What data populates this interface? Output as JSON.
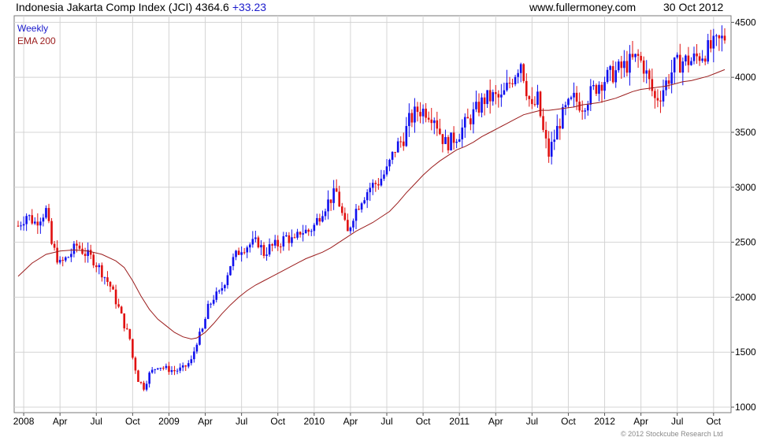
{
  "header": {
    "title": "Indonesia Jakarta Comp Index (JCI) 4364.6",
    "change": "+33.23",
    "site": "www.fullermoney.com",
    "date": "30 Oct 2012"
  },
  "legend": {
    "weekly": "Weekly",
    "ema": "EMA 200",
    "weekly_color": "#1a1acc",
    "ema_color": "#9b1c1c"
  },
  "copyright": "© 2012 Stockcube Research Ltd",
  "colors": {
    "up": "#1010ee",
    "down": "#e01010",
    "grid": "#d4d4d4",
    "ema": "#9b1c1c"
  },
  "chart_data": {
    "type": "candlestick",
    "title": "Indonesia Jakarta Comp Index (JCI) 4364.6 +33.23",
    "xlabel": "",
    "ylabel": "",
    "ylim": [
      950,
      4560
    ],
    "y_ticks": [
      1000,
      1500,
      2000,
      2500,
      3000,
      3500,
      4000,
      4500
    ],
    "x_ticks": [
      {
        "label": "2008",
        "week": 2
      },
      {
        "label": "Apr",
        "week": 15
      },
      {
        "label": "Jul",
        "week": 28
      },
      {
        "label": "Oct",
        "week": 41
      },
      {
        "label": "2009",
        "week": 54
      },
      {
        "label": "Apr",
        "week": 67
      },
      {
        "label": "Jul",
        "week": 80
      },
      {
        "label": "Oct",
        "week": 93
      },
      {
        "label": "2010",
        "week": 106
      },
      {
        "label": "Apr",
        "week": 119
      },
      {
        "label": "Jul",
        "week": 132
      },
      {
        "label": "Oct",
        "week": 145
      },
      {
        "label": "2011",
        "week": 158
      },
      {
        "label": "Apr",
        "week": 171
      },
      {
        "label": "Jul",
        "week": 184
      },
      {
        "label": "Oct",
        "week": 197
      },
      {
        "label": "2012",
        "week": 210
      },
      {
        "label": "Apr",
        "week": 223
      },
      {
        "label": "Jul",
        "week": 236
      },
      {
        "label": "Oct",
        "week": 249
      }
    ],
    "grid": true,
    "weekly_close_path": [
      [
        0,
        2650
      ],
      [
        3,
        2750
      ],
      [
        6,
        2680
      ],
      [
        10,
        2790
      ],
      [
        12,
        2480
      ],
      [
        15,
        2300
      ],
      [
        18,
        2370
      ],
      [
        21,
        2470
      ],
      [
        24,
        2400
      ],
      [
        27,
        2340
      ],
      [
        30,
        2230
      ],
      [
        33,
        2100
      ],
      [
        36,
        1900
      ],
      [
        38,
        1750
      ],
      [
        40,
        1620
      ],
      [
        41,
        1450
      ],
      [
        43,
        1250
      ],
      [
        45,
        1180
      ],
      [
        47,
        1300
      ],
      [
        50,
        1380
      ],
      [
        53,
        1350
      ],
      [
        56,
        1330
      ],
      [
        59,
        1350
      ],
      [
        62,
        1420
      ],
      [
        64,
        1600
      ],
      [
        66,
        1700
      ],
      [
        68,
        1900
      ],
      [
        70,
        2000
      ],
      [
        72,
        2030
      ],
      [
        74,
        2150
      ],
      [
        76,
        2300
      ],
      [
        78,
        2380
      ],
      [
        80,
        2450
      ],
      [
        83,
        2480
      ],
      [
        86,
        2500
      ],
      [
        88,
        2400
      ],
      [
        90,
        2450
      ],
      [
        93,
        2480
      ],
      [
        96,
        2550
      ],
      [
        99,
        2500
      ],
      [
        101,
        2600
      ],
      [
        104,
        2600
      ],
      [
        106,
        2650
      ],
      [
        109,
        2800
      ],
      [
        112,
        2900
      ],
      [
        114,
        2950
      ],
      [
        117,
        2650
      ],
      [
        118,
        2580
      ],
      [
        120,
        2750
      ],
      [
        123,
        2900
      ],
      [
        126,
        3000
      ],
      [
        129,
        3050
      ],
      [
        132,
        3150
      ],
      [
        135,
        3350
      ],
      [
        138,
        3450
      ],
      [
        140,
        3600
      ],
      [
        143,
        3700
      ],
      [
        146,
        3700
      ],
      [
        149,
        3650
      ],
      [
        151,
        3500
      ],
      [
        153,
        3400
      ],
      [
        155,
        3420
      ],
      [
        158,
        3500
      ],
      [
        161,
        3600
      ],
      [
        164,
        3700
      ],
      [
        167,
        3800
      ],
      [
        170,
        3820
      ],
      [
        173,
        3800
      ],
      [
        175,
        3900
      ],
      [
        178,
        4050
      ],
      [
        180,
        4150
      ],
      [
        182,
        3900
      ],
      [
        184,
        3700
      ],
      [
        186,
        3800
      ],
      [
        188,
        3500
      ],
      [
        190,
        3300
      ],
      [
        192,
        3450
      ],
      [
        194,
        3600
      ],
      [
        196,
        3700
      ],
      [
        199,
        3800
      ],
      [
        202,
        3750
      ],
      [
        205,
        3850
      ],
      [
        208,
        3950
      ],
      [
        211,
        4000
      ],
      [
        214,
        4050
      ],
      [
        217,
        4100
      ],
      [
        220,
        4150
      ],
      [
        222,
        4180
      ],
      [
        224,
        4100
      ],
      [
        226,
        3950
      ],
      [
        228,
        3800
      ],
      [
        230,
        3850
      ],
      [
        232,
        3950
      ],
      [
        235,
        4100
      ],
      [
        238,
        4150
      ],
      [
        241,
        4150
      ],
      [
        244,
        4200
      ],
      [
        247,
        4250
      ],
      [
        250,
        4300
      ],
      [
        253,
        4364.6
      ]
    ],
    "series": [
      {
        "name": "EMA 200",
        "points": [
          [
            0,
            2190
          ],
          [
            5,
            2310
          ],
          [
            10,
            2390
          ],
          [
            15,
            2420
          ],
          [
            20,
            2430
          ],
          [
            25,
            2420
          ],
          [
            30,
            2390
          ],
          [
            35,
            2330
          ],
          [
            38,
            2270
          ],
          [
            41,
            2150
          ],
          [
            44,
            2010
          ],
          [
            47,
            1890
          ],
          [
            50,
            1800
          ],
          [
            53,
            1740
          ],
          [
            56,
            1680
          ],
          [
            59,
            1640
          ],
          [
            62,
            1620
          ],
          [
            64,
            1630
          ],
          [
            67,
            1680
          ],
          [
            70,
            1760
          ],
          [
            73,
            1850
          ],
          [
            76,
            1930
          ],
          [
            79,
            2000
          ],
          [
            82,
            2060
          ],
          [
            85,
            2110
          ],
          [
            88,
            2150
          ],
          [
            91,
            2190
          ],
          [
            94,
            2230
          ],
          [
            97,
            2270
          ],
          [
            100,
            2310
          ],
          [
            103,
            2350
          ],
          [
            106,
            2380
          ],
          [
            109,
            2410
          ],
          [
            112,
            2450
          ],
          [
            115,
            2500
          ],
          [
            118,
            2550
          ],
          [
            121,
            2600
          ],
          [
            124,
            2640
          ],
          [
            127,
            2680
          ],
          [
            130,
            2730
          ],
          [
            133,
            2780
          ],
          [
            136,
            2860
          ],
          [
            139,
            2950
          ],
          [
            142,
            3030
          ],
          [
            145,
            3110
          ],
          [
            148,
            3180
          ],
          [
            151,
            3240
          ],
          [
            154,
            3290
          ],
          [
            157,
            3340
          ],
          [
            160,
            3370
          ],
          [
            163,
            3410
          ],
          [
            166,
            3460
          ],
          [
            169,
            3500
          ],
          [
            172,
            3540
          ],
          [
            175,
            3580
          ],
          [
            178,
            3620
          ],
          [
            181,
            3660
          ],
          [
            184,
            3680
          ],
          [
            187,
            3700
          ],
          [
            190,
            3700
          ],
          [
            193,
            3710
          ],
          [
            196,
            3720
          ],
          [
            199,
            3730
          ],
          [
            202,
            3750
          ],
          [
            205,
            3760
          ],
          [
            208,
            3770
          ],
          [
            211,
            3790
          ],
          [
            214,
            3810
          ],
          [
            217,
            3840
          ],
          [
            220,
            3870
          ],
          [
            223,
            3890
          ],
          [
            226,
            3900
          ],
          [
            229,
            3910
          ],
          [
            232,
            3920
          ],
          [
            235,
            3940
          ],
          [
            238,
            3960
          ],
          [
            241,
            3970
          ],
          [
            244,
            3990
          ],
          [
            247,
            4010
          ],
          [
            250,
            4040
          ],
          [
            253,
            4070
          ]
        ]
      }
    ],
    "legend": "top-left"
  }
}
